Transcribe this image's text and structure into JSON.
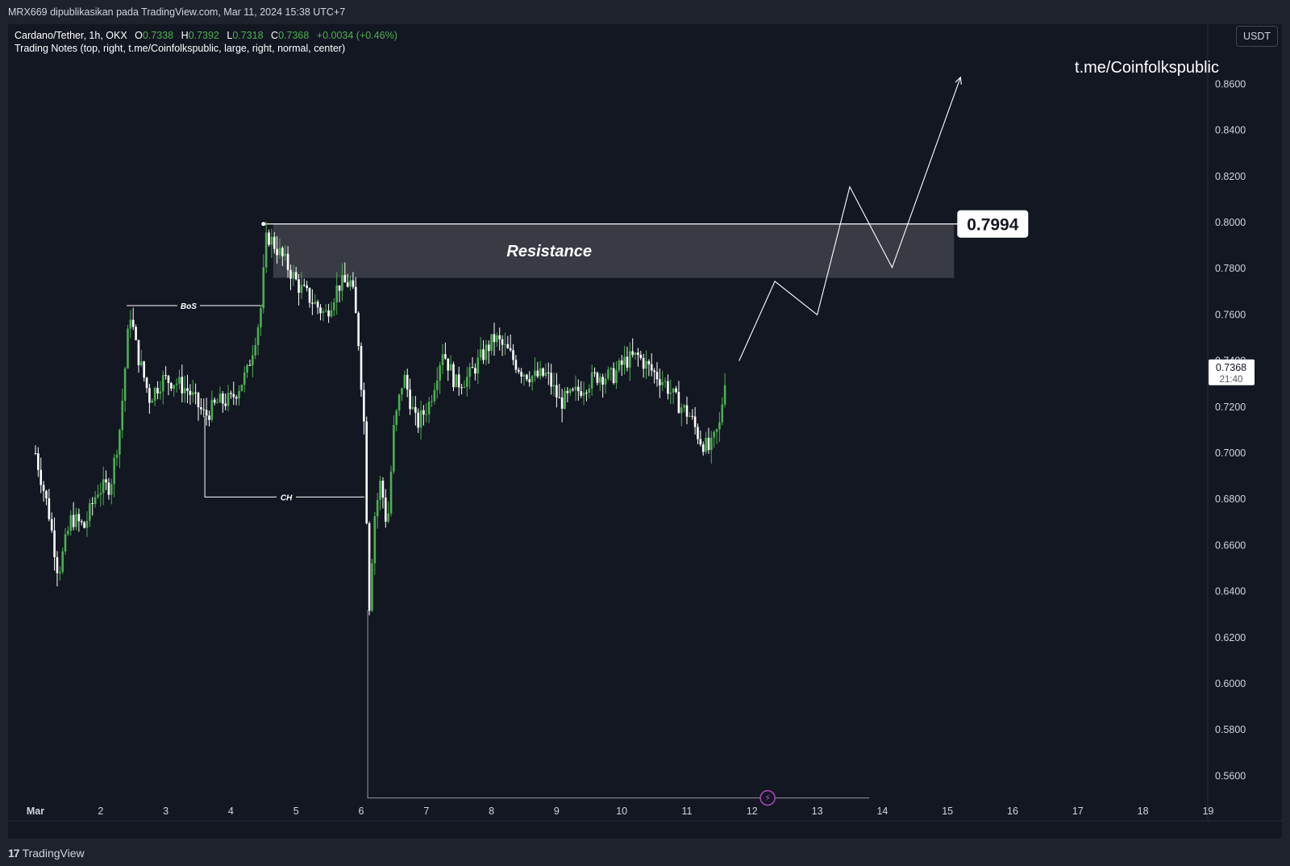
{
  "header": {
    "publisher_line": "MRX669 dipublikasikan pada TradingView.com, Mar 11, 2024 15:38 UTC+7"
  },
  "legend": {
    "symbol": "Cardano/Tether, 1h, OKX",
    "open_label": "O",
    "open_value": "0.7338",
    "high_label": "H",
    "high_value": "0.7392",
    "low_label": "L",
    "low_value": "0.7318",
    "close_label": "C",
    "close_value": "0.7368",
    "change": "+0.0034 (+0.46%)",
    "indicator": "Trading Notes (top, right, t.me/Coinfolkspublic, large, right, normal, center)"
  },
  "currency_button": "USDT",
  "note_text": "t.me/Coinfolkspublic",
  "footer": {
    "brand": "TradingView",
    "brand_mark": "17"
  },
  "colors": {
    "up": "#4caf50",
    "down": "#ffffff",
    "background": "#131722",
    "zone": "#3a3d47"
  },
  "chart_data": {
    "type": "candlestick",
    "symbol": "Cardano/Tether",
    "interval": "1h",
    "exchange": "OKX",
    "ylim": [
      0.55,
      0.87
    ],
    "y_ticks": [
      "0.8600",
      "0.8400",
      "0.8200",
      "0.8000",
      "0.7800",
      "0.7600",
      "0.7400",
      "0.7200",
      "0.7000",
      "0.6800",
      "0.6600",
      "0.6400",
      "0.6200",
      "0.6000",
      "0.5800",
      "0.5600"
    ],
    "x_ticks": [
      "Mar",
      "2",
      "3",
      "4",
      "5",
      "6",
      "7",
      "8",
      "9",
      "10",
      "11",
      "12",
      "13",
      "14",
      "15",
      "16",
      "17",
      "18",
      "19"
    ],
    "last_price": {
      "value": "0.7368",
      "countdown": "21:40"
    },
    "resistance": {
      "label": "Resistance",
      "top": 0.7994,
      "bottom": 0.776,
      "level_label": "0.7994"
    },
    "annotations": [
      {
        "label": "BoS",
        "price": 0.764
      },
      {
        "label": "CH",
        "price": 0.681
      }
    ],
    "price_path": [
      {
        "day": 1.0,
        "price": 0.7
      },
      {
        "day": 1.2,
        "price": 0.675
      },
      {
        "day": 1.35,
        "price": 0.648
      },
      {
        "day": 1.55,
        "price": 0.672
      },
      {
        "day": 1.75,
        "price": 0.668
      },
      {
        "day": 1.95,
        "price": 0.684
      },
      {
        "day": 2.15,
        "price": 0.686
      },
      {
        "day": 2.3,
        "price": 0.712
      },
      {
        "day": 2.45,
        "price": 0.762
      },
      {
        "day": 2.55,
        "price": 0.745
      },
      {
        "day": 2.75,
        "price": 0.724
      },
      {
        "day": 2.95,
        "price": 0.732
      },
      {
        "day": 3.15,
        "price": 0.731
      },
      {
        "day": 3.35,
        "price": 0.727
      },
      {
        "day": 3.6,
        "price": 0.716
      },
      {
        "day": 3.8,
        "price": 0.722
      },
      {
        "day": 4.0,
        "price": 0.723
      },
      {
        "day": 4.25,
        "price": 0.735
      },
      {
        "day": 4.45,
        "price": 0.76
      },
      {
        "day": 4.55,
        "price": 0.795
      },
      {
        "day": 4.7,
        "price": 0.789
      },
      {
        "day": 4.85,
        "price": 0.782
      },
      {
        "day": 5.05,
        "price": 0.772
      },
      {
        "day": 5.25,
        "price": 0.766
      },
      {
        "day": 5.45,
        "price": 0.76
      },
      {
        "day": 5.65,
        "price": 0.773
      },
      {
        "day": 5.85,
        "price": 0.774
      },
      {
        "day": 5.95,
        "price": 0.752
      },
      {
        "day": 6.05,
        "price": 0.71
      },
      {
        "day": 6.12,
        "price": 0.632
      },
      {
        "day": 6.2,
        "price": 0.672
      },
      {
        "day": 6.3,
        "price": 0.688
      },
      {
        "day": 6.4,
        "price": 0.667
      },
      {
        "day": 6.5,
        "price": 0.71
      },
      {
        "day": 6.65,
        "price": 0.734
      },
      {
        "day": 6.85,
        "price": 0.712
      },
      {
        "day": 7.05,
        "price": 0.722
      },
      {
        "day": 7.25,
        "price": 0.745
      },
      {
        "day": 7.45,
        "price": 0.73
      },
      {
        "day": 7.65,
        "price": 0.733
      },
      {
        "day": 7.85,
        "price": 0.742
      },
      {
        "day": 8.05,
        "price": 0.75
      },
      {
        "day": 8.25,
        "price": 0.744
      },
      {
        "day": 8.45,
        "price": 0.736
      },
      {
        "day": 8.65,
        "price": 0.733
      },
      {
        "day": 8.85,
        "price": 0.734
      },
      {
        "day": 9.05,
        "price": 0.722
      },
      {
        "day": 9.25,
        "price": 0.725
      },
      {
        "day": 9.45,
        "price": 0.73
      },
      {
        "day": 9.65,
        "price": 0.734
      },
      {
        "day": 9.85,
        "price": 0.733
      },
      {
        "day": 10.05,
        "price": 0.74
      },
      {
        "day": 10.25,
        "price": 0.742
      },
      {
        "day": 10.45,
        "price": 0.736
      },
      {
        "day": 10.65,
        "price": 0.731
      },
      {
        "day": 10.85,
        "price": 0.722
      },
      {
        "day": 11.05,
        "price": 0.716
      },
      {
        "day": 11.2,
        "price": 0.706
      },
      {
        "day": 11.35,
        "price": 0.701
      },
      {
        "day": 11.5,
        "price": 0.712
      },
      {
        "day": 11.6,
        "price": 0.7368
      }
    ],
    "projection_path": [
      {
        "day": 11.8,
        "price": 0.74
      },
      {
        "day": 12.35,
        "price": 0.7745
      },
      {
        "day": 13.0,
        "price": 0.76
      },
      {
        "day": 13.5,
        "price": 0.8155
      },
      {
        "day": 14.15,
        "price": 0.7805
      },
      {
        "day": 15.2,
        "price": 0.863
      }
    ]
  }
}
